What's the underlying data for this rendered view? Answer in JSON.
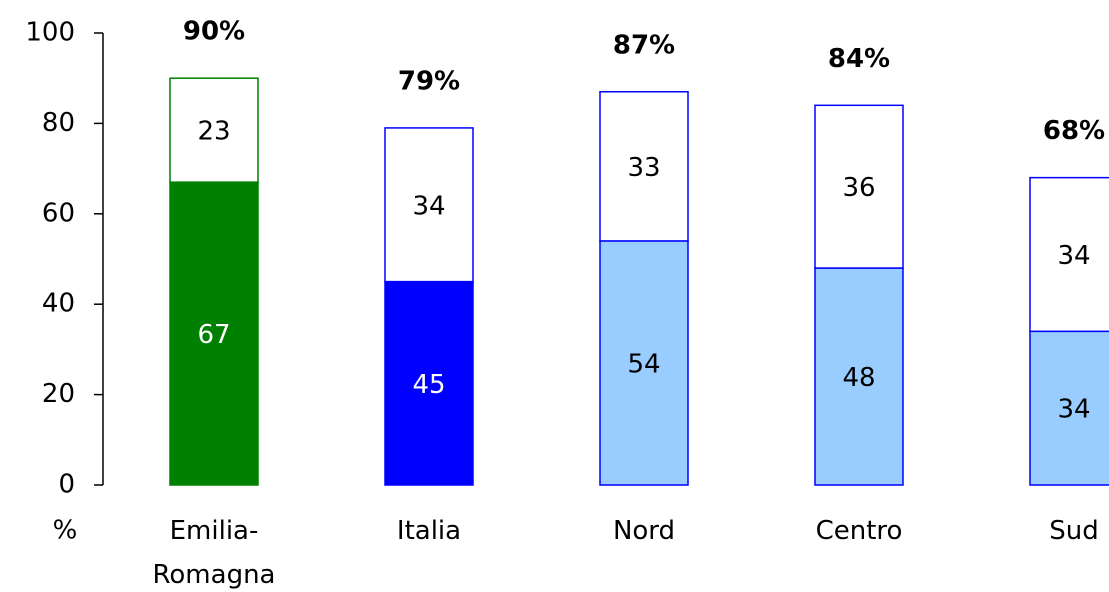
{
  "chart_data": {
    "type": "stacked_bar",
    "y_label": "%",
    "categories": [
      "Emilia-Romagna",
      "Italia",
      "Nord",
      "Centro",
      "Sud"
    ],
    "series": [
      {
        "values": [
          67,
          45,
          54,
          48,
          34
        ],
        "colors": [
          "#008000",
          "#0000ff",
          "#99ccff",
          "#99ccff",
          "#99ccff"
        ],
        "edge_colors": [
          "#008000",
          "#0000ff",
          "#0000ff",
          "#0000ff",
          "#0000ff"
        ],
        "label_colors": [
          "#ffffff",
          "#ffffff",
          "#000000",
          "#000000",
          "#000000"
        ]
      },
      {
        "values": [
          23,
          34,
          33,
          36,
          34
        ],
        "colors": [
          "#ffffff",
          "#ffffff",
          "#ffffff",
          "#ffffff",
          "#ffffff"
        ],
        "edge_colors": [
          "#008000",
          "#0000ff",
          "#0000ff",
          "#0000ff",
          "#0000ff"
        ],
        "label_colors": [
          "#000000",
          "#000000",
          "#000000",
          "#000000",
          "#000000"
        ]
      }
    ],
    "totals": {
      "values": [
        90,
        79,
        87,
        84,
        68
      ],
      "value_labels": [
        "90%",
        "79%",
        "87%",
        "84%",
        "68%"
      ]
    },
    "ylim": [
      0,
      100
    ],
    "yticks": [
      0,
      20,
      40,
      60,
      80,
      100
    ]
  }
}
